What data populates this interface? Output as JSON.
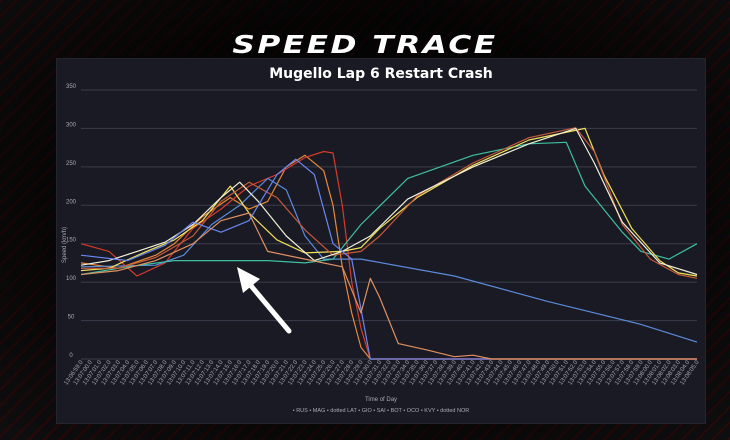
{
  "headline": "SPEED TRACE",
  "chart_data": {
    "type": "line",
    "title": "Mugello Lap 6 Restart Crash",
    "xlabel": "Time of Day",
    "ylabel": "Speed (km/h)",
    "ylim": [
      0,
      350
    ],
    "yticks": [
      "0",
      "50",
      "100",
      "150",
      "200",
      "250",
      "300",
      "350"
    ],
    "grid": true,
    "x_ticks": [
      "13:06:59.0",
      "13:07:00.0",
      "13:07:01.0",
      "13:07:02.0",
      "13:07:03.0",
      "13:07:04.0",
      "13:07:05.0",
      "13:07:06.0",
      "13:07:07.0",
      "13:07:08.0",
      "13:07:09.0",
      "13:07:10.0",
      "13:07:11.0",
      "13:07:12.0",
      "13:07:13.0",
      "13:07:14.0",
      "13:07:15.0",
      "13:07:16.0",
      "13:07:17.0",
      "13:07:18.0",
      "13:07:19.0",
      "13:07:20.0",
      "13:07:21.0",
      "13:07:22.0",
      "13:07:23.0",
      "13:07:24.0",
      "13:07:25.0",
      "13:07:26.0",
      "13:07:27.0",
      "13:07:28.0",
      "13:07:29.0",
      "13:07:30.0",
      "13:07:31.0",
      "13:07:32.0",
      "13:07:33.0",
      "13:07:34.0",
      "13:07:35.0",
      "13:07:36.0",
      "13:07:37.0",
      "13:07:38.0",
      "13:07:39.0",
      "13:07:40.0",
      "13:07:41.0",
      "13:07:42.0",
      "13:07:43.0",
      "13:07:44.0",
      "13:07:45.0",
      "13:07:46.0",
      "13:07:47.0",
      "13:07:48.0",
      "13:07:49.0",
      "13:07:50.0",
      "13:07:51.0",
      "13:07:52.0",
      "13:07:53.0",
      "13:07:54.0",
      "13:07:55.0",
      "13:07:56.0",
      "13:07:57.0",
      "13:07:58.0",
      "13:07:59.0",
      "13:08:00.0",
      "13:08:01.0",
      "13:08:02.0",
      "13:08:03.0",
      "13:08:04.0",
      "13:08:05.0"
    ],
    "legend": "• RUS • MAG • dotted LAT • GIO • SAI • BOT • OCO • KVY • dotted NOR",
    "legend_position": "bottom",
    "series": [
      {
        "name": "RUS",
        "color": "#e8883a",
        "points": [
          [
            0,
            125
          ],
          [
            4,
            118
          ],
          [
            8,
            135
          ],
          [
            10,
            150
          ],
          [
            13,
            185
          ],
          [
            16,
            210
          ],
          [
            18,
            195
          ],
          [
            20,
            205
          ],
          [
            22,
            250
          ],
          [
            24,
            265
          ],
          [
            26,
            245
          ],
          [
            27,
            200
          ],
          [
            28,
            120
          ],
          [
            29,
            60
          ],
          [
            30,
            15
          ],
          [
            31,
            0
          ],
          [
            66,
            0
          ]
        ]
      },
      {
        "name": "MAG",
        "color": "#d63a2c",
        "points": [
          [
            0,
            150
          ],
          [
            3,
            140
          ],
          [
            6,
            108
          ],
          [
            9,
            125
          ],
          [
            12,
            170
          ],
          [
            15,
            195
          ],
          [
            18,
            225
          ],
          [
            21,
            240
          ],
          [
            24,
            262
          ],
          [
            26,
            270
          ],
          [
            27,
            268
          ],
          [
            28,
            200
          ],
          [
            29,
            100
          ],
          [
            30,
            40
          ],
          [
            31,
            0
          ],
          [
            66,
            0
          ]
        ]
      },
      {
        "name": "LAT",
        "color": "#5b8ad8",
        "points": [
          [
            0,
            120
          ],
          [
            8,
            122
          ],
          [
            11,
            135
          ],
          [
            14,
            175
          ],
          [
            17,
            200
          ],
          [
            20,
            235
          ],
          [
            22,
            220
          ],
          [
            24,
            160
          ],
          [
            26,
            130
          ],
          [
            30,
            130
          ],
          [
            40,
            108
          ],
          [
            50,
            75
          ],
          [
            60,
            45
          ],
          [
            66,
            22
          ]
        ]
      },
      {
        "name": "GIO",
        "color": "#3fbfa0",
        "points": [
          [
            0,
            110
          ],
          [
            5,
            120
          ],
          [
            10,
            128
          ],
          [
            15,
            128
          ],
          [
            20,
            128
          ],
          [
            24,
            125
          ],
          [
            27,
            130
          ],
          [
            30,
            175
          ],
          [
            35,
            235
          ],
          [
            42,
            265
          ],
          [
            48,
            280
          ],
          [
            52,
            282
          ],
          [
            54,
            225
          ],
          [
            58,
            165
          ],
          [
            60,
            140
          ],
          [
            63,
            130
          ],
          [
            66,
            150
          ]
        ]
      },
      {
        "name": "SAI",
        "color": "#f1e05a",
        "points": [
          [
            0,
            115
          ],
          [
            3,
            118
          ],
          [
            7,
            140
          ],
          [
            10,
            155
          ],
          [
            13,
            180
          ],
          [
            16,
            225
          ],
          [
            18,
            190
          ],
          [
            21,
            155
          ],
          [
            24,
            138
          ],
          [
            28,
            140
          ],
          [
            30,
            145
          ],
          [
            32,
            170
          ],
          [
            36,
            210
          ],
          [
            42,
            252
          ],
          [
            48,
            285
          ],
          [
            54,
            300
          ],
          [
            56,
            240
          ],
          [
            59,
            170
          ],
          [
            62,
            128
          ],
          [
            64,
            112
          ],
          [
            66,
            108
          ]
        ]
      },
      {
        "name": "BOT",
        "color": "#c55a3a",
        "points": [
          [
            0,
            118
          ],
          [
            4,
            118
          ],
          [
            8,
            132
          ],
          [
            12,
            160
          ],
          [
            15,
            205
          ],
          [
            18,
            230
          ],
          [
            21,
            210
          ],
          [
            24,
            168
          ],
          [
            27,
            135
          ],
          [
            30,
            140
          ],
          [
            32,
            160
          ],
          [
            36,
            212
          ],
          [
            42,
            255
          ],
          [
            48,
            288
          ],
          [
            53,
            301
          ],
          [
            55,
            270
          ],
          [
            58,
            175
          ],
          [
            61,
            130
          ],
          [
            64,
            110
          ],
          [
            66,
            105
          ]
        ]
      },
      {
        "name": "OCO",
        "color": "#f0f0d8",
        "points": [
          [
            0,
            122
          ],
          [
            3,
            128
          ],
          [
            6,
            140
          ],
          [
            9,
            152
          ],
          [
            12,
            175
          ],
          [
            15,
            210
          ],
          [
            17,
            230
          ],
          [
            19,
            205
          ],
          [
            22,
            160
          ],
          [
            25,
            128
          ],
          [
            28,
            140
          ],
          [
            31,
            160
          ],
          [
            35,
            208
          ],
          [
            42,
            250
          ],
          [
            48,
            280
          ],
          [
            53,
            300
          ],
          [
            55,
            255
          ],
          [
            58,
            178
          ],
          [
            62,
            125
          ],
          [
            66,
            110
          ]
        ]
      },
      {
        "name": "KVY",
        "color": "#6a86f0",
        "points": [
          [
            0,
            135
          ],
          [
            5,
            128
          ],
          [
            9,
            148
          ],
          [
            12,
            178
          ],
          [
            15,
            165
          ],
          [
            18,
            180
          ],
          [
            21,
            240
          ],
          [
            23,
            260
          ],
          [
            25,
            240
          ],
          [
            27,
            150
          ],
          [
            29,
            130
          ],
          [
            31,
            0
          ],
          [
            66,
            0
          ]
        ]
      },
      {
        "name": "NOR",
        "color": "#e09060",
        "points": [
          [
            0,
            110
          ],
          [
            4,
            115
          ],
          [
            8,
            128
          ],
          [
            12,
            150
          ],
          [
            15,
            180
          ],
          [
            18,
            190
          ],
          [
            20,
            140
          ],
          [
            24,
            130
          ],
          [
            28,
            120
          ],
          [
            30,
            60
          ],
          [
            31,
            105
          ],
          [
            32,
            80
          ],
          [
            34,
            20
          ],
          [
            37,
            12
          ],
          [
            40,
            3
          ],
          [
            42,
            5
          ],
          [
            44,
            0
          ],
          [
            66,
            0
          ]
        ]
      }
    ]
  }
}
